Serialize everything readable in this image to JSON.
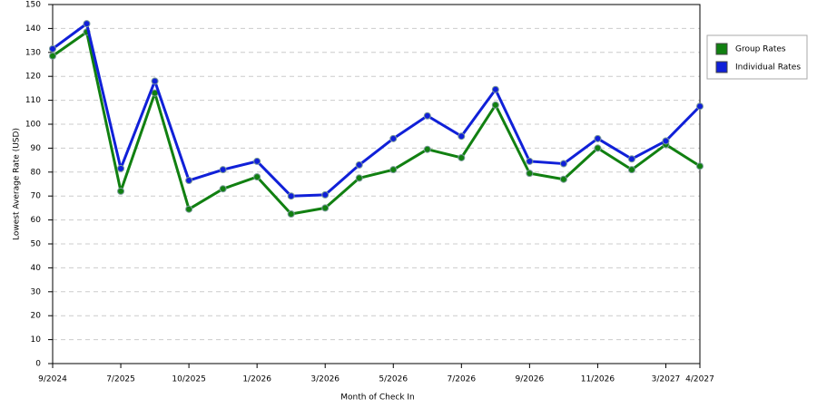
{
  "chart_data": {
    "type": "line",
    "x_label": "Month of Check In",
    "y_label": "Lowest Average Rate (USD)",
    "categories": [
      "9/2024",
      null,
      "7/2025",
      null,
      "10/2025",
      null,
      "1/2026",
      null,
      "3/2026",
      null,
      "5/2026",
      null,
      "7/2026",
      null,
      "9/2026",
      null,
      "11/2026",
      null,
      "3/2027",
      "4/2027"
    ],
    "series": [
      {
        "name": "Group Rates",
        "color": "#118011",
        "values": [
          128.5,
          138.5,
          72,
          113,
          64.5,
          73,
          78,
          62.5,
          65,
          77.5,
          81,
          89.5,
          86,
          108,
          79.5,
          77,
          90,
          81,
          91.5,
          82.5
        ]
      },
      {
        "name": "Individual Rates",
        "color": "#1020d8",
        "values": [
          131.5,
          142,
          81.5,
          118,
          76.5,
          81,
          84.5,
          70,
          70.5,
          83,
          94,
          103.5,
          95,
          114.5,
          84.5,
          83.5,
          94,
          85.5,
          93,
          107.5
        ]
      }
    ],
    "ylim": [
      0,
      150
    ],
    "yticks": [
      0,
      10,
      20,
      30,
      40,
      50,
      60,
      70,
      80,
      90,
      100,
      110,
      120,
      130,
      140,
      150
    ],
    "grid": true,
    "legend": "right"
  }
}
